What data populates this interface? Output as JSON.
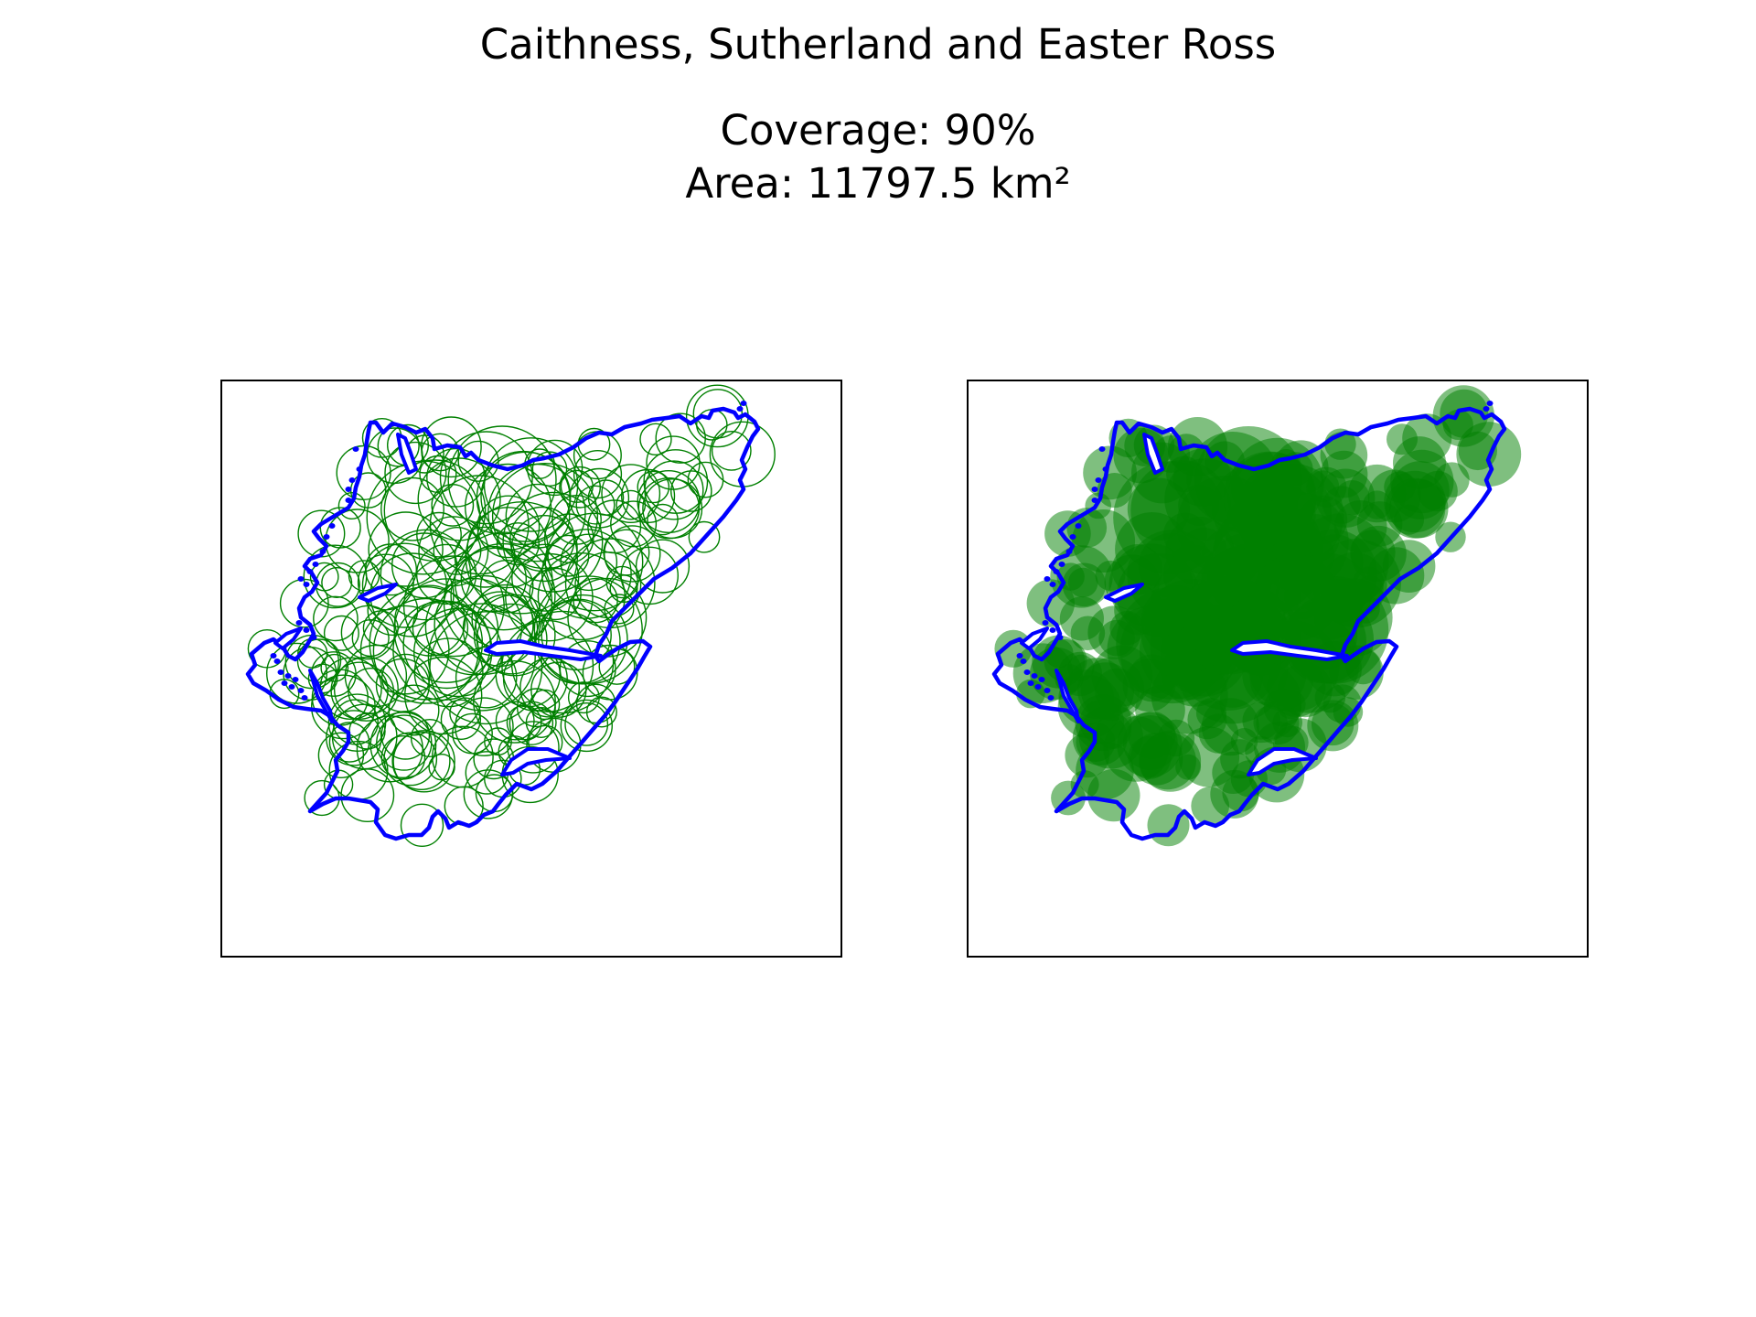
{
  "figure": {
    "title": "Caithness, Sutherland and Easter Ross",
    "coverage_label": "Coverage: 90%",
    "area_label": "Area: 11797.5 km²"
  },
  "colors": {
    "outline": "#0000ff",
    "circle": "#008000",
    "frame": "#000000",
    "background": "#ffffff"
  },
  "panels": [
    {
      "id": "left",
      "style": "circle outlines"
    },
    {
      "id": "right",
      "style": "filled translucent circles"
    }
  ]
}
